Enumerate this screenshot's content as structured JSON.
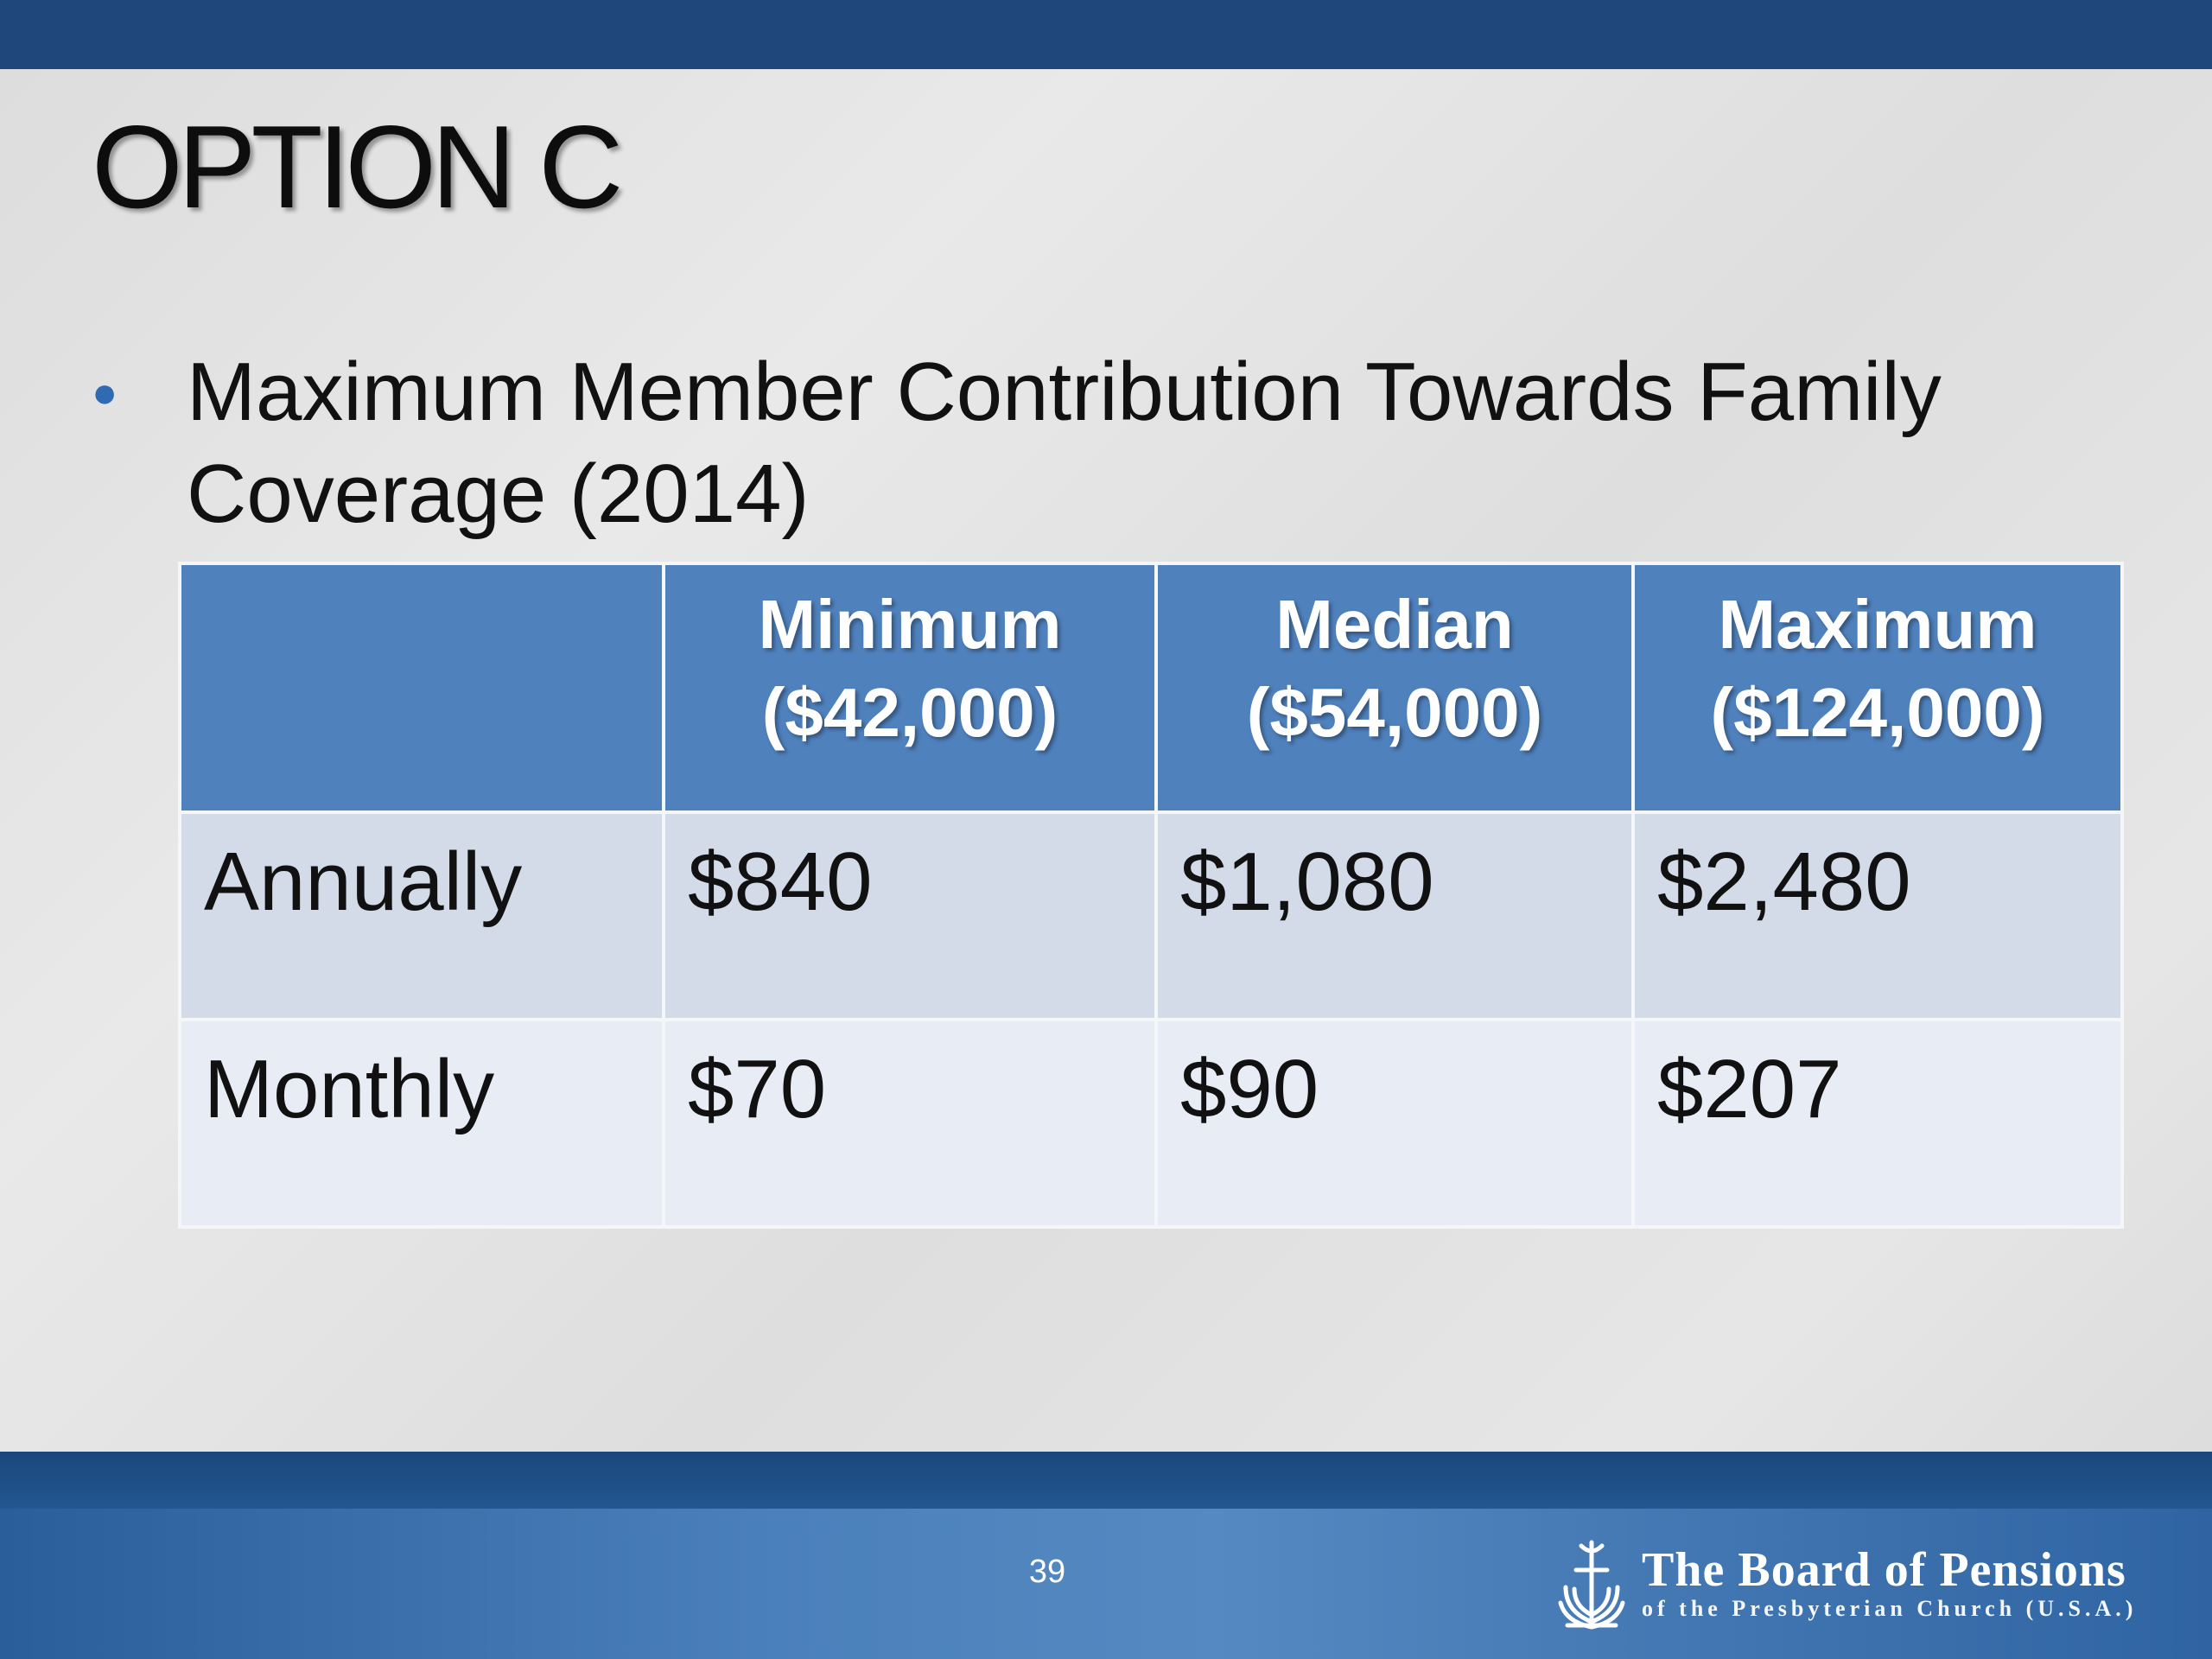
{
  "slide": {
    "title": "OPTION C",
    "bullet": "Maximum Member Contribution Towards Family Coverage (2014)",
    "page_number": "39"
  },
  "table": {
    "headers": [
      "",
      "Minimum ($42,000)",
      "Median ($54,000)",
      "Maximum ($124,000)"
    ],
    "rows": [
      {
        "label": "Annually",
        "values": [
          "$840",
          "$1,080",
          "$2,480"
        ]
      },
      {
        "label": "Monthly",
        "values": [
          "$70",
          "$90",
          "$207"
        ]
      }
    ]
  },
  "footer": {
    "org_name": "The Board of Pensions",
    "org_subtitle": "of the Presbyterian Church (U.S.A.)",
    "logo_icon": "presbyterian-seal-icon"
  },
  "colors": {
    "top_bar": "#1f477c",
    "header_fill": "#4f81bd",
    "row_annual": "#d3dbe9",
    "row_monthly": "#e8ecf5",
    "bullet": "#2f6ab3"
  }
}
